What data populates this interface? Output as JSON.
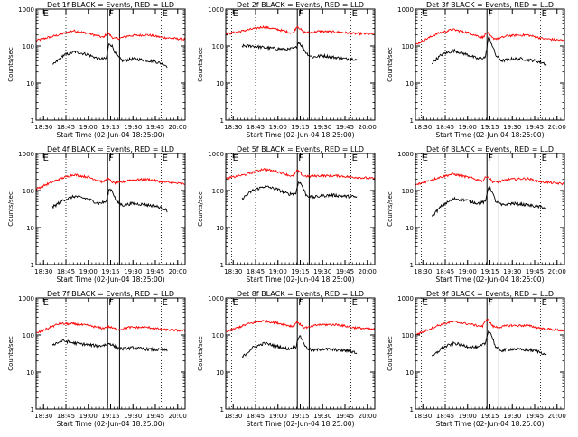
{
  "chart_data": {
    "type": "line",
    "y_scale": "log",
    "ylim": [
      1,
      1000
    ],
    "y_ticks": [
      1,
      10,
      100,
      1000
    ],
    "y_tick_labels": [
      "1",
      "10",
      "100",
      "1000"
    ],
    "ylabel": "Counts/sec",
    "xlabel": "Start Time (02-Jun-04 18:25:00)",
    "x_range_min": [
      0,
      100
    ],
    "x_ticks_min": [
      5,
      20,
      35,
      50,
      65,
      80,
      95
    ],
    "x_tick_labels": [
      "18:30",
      "18:45",
      "19:00",
      "19:15",
      "19:30",
      "19:45",
      "20:00"
    ],
    "marker_lines": [
      {
        "label": "E",
        "t_min": 4,
        "style": "dotted"
      },
      {
        "label": "",
        "t_min": 20,
        "style": "dotted"
      },
      {
        "label": "F",
        "t_min": 48,
        "style": "solid"
      },
      {
        "label": "",
        "t_min": 56,
        "style": "solid"
      },
      {
        "label": "E",
        "t_min": 84,
        "style": "dotted"
      }
    ],
    "series_colors": {
      "events": "#000000",
      "lld": "#ff0000"
    },
    "panels": [
      {
        "title": "Det 1f BLACK = Events, RED = LLD",
        "series": [
          {
            "name": "LLD",
            "color": "red",
            "x": [
              0,
              15,
              25,
              35,
              45,
              48,
              52,
              56,
              62,
              75,
              85,
              100
            ],
            "y": [
              140,
              200,
              260,
              220,
              170,
              230,
              160,
              160,
              190,
              200,
              170,
              150
            ]
          },
          {
            "name": "Events",
            "color": "black",
            "x": [
              11,
              18,
              26,
              34,
              42,
              47,
              49,
              51,
              54,
              58,
              65,
              72,
              80,
              86,
              88
            ],
            "y": [
              30,
              55,
              70,
              60,
              45,
              45,
              120,
              100,
              55,
              40,
              45,
              42,
              38,
              32,
              28
            ]
          }
        ]
      },
      {
        "title": "Det 2f BLACK = Events, RED = LLD",
        "series": [
          {
            "name": "LLD",
            "color": "red",
            "x": [
              0,
              10,
              25,
              35,
              45,
              48,
              52,
              56,
              62,
              75,
              85,
              100
            ],
            "y": [
              210,
              250,
              330,
              280,
              220,
              350,
              240,
              230,
              250,
              240,
              220,
              210
            ]
          },
          {
            "name": "Events",
            "color": "black",
            "x": [
              11,
              18,
              26,
              34,
              42,
              47,
              49,
              51,
              54,
              58,
              65,
              72,
              80,
              86,
              88
            ],
            "y": [
              100,
              100,
              90,
              85,
              80,
              90,
              130,
              100,
              65,
              50,
              55,
              50,
              45,
              45,
              42
            ]
          }
        ]
      },
      {
        "title": "Det 3f BLACK = Events, RED = LLD",
        "series": [
          {
            "name": "LLD",
            "color": "red",
            "x": [
              0,
              15,
              25,
              35,
              45,
              48,
              52,
              56,
              62,
              75,
              85,
              100
            ],
            "y": [
              110,
              220,
              280,
              230,
              170,
              230,
              160,
              160,
              190,
              200,
              160,
              140
            ]
          },
          {
            "name": "Events",
            "color": "black",
            "x": [
              11,
              18,
              26,
              34,
              42,
              47,
              49,
              51,
              54,
              58,
              65,
              72,
              80,
              86,
              88
            ],
            "y": [
              35,
              60,
              75,
              60,
              45,
              50,
              180,
              120,
              55,
              40,
              45,
              45,
              40,
              35,
              30
            ]
          }
        ]
      },
      {
        "title": "Det 4f BLACK = Events, RED = LLD",
        "series": [
          {
            "name": "LLD",
            "color": "red",
            "x": [
              0,
              15,
              25,
              35,
              45,
              48,
              52,
              56,
              62,
              75,
              85,
              100
            ],
            "y": [
              110,
              200,
              270,
              230,
              170,
              210,
              160,
              160,
              190,
              200,
              170,
              150
            ]
          },
          {
            "name": "Events",
            "color": "black",
            "x": [
              11,
              18,
              26,
              34,
              42,
              47,
              49,
              51,
              54,
              58,
              65,
              72,
              80,
              86,
              88
            ],
            "y": [
              35,
              55,
              70,
              60,
              45,
              50,
              110,
              100,
              50,
              40,
              45,
              42,
              38,
              32,
              28
            ]
          }
        ]
      },
      {
        "title": "Det 5f BLACK = Events, RED = LLD",
        "series": [
          {
            "name": "LLD",
            "color": "red",
            "x": [
              0,
              15,
              25,
              35,
              45,
              48,
              52,
              56,
              62,
              75,
              85,
              100
            ],
            "y": [
              210,
              280,
              380,
              320,
              240,
              350,
              250,
              240,
              250,
              250,
              230,
              210
            ]
          },
          {
            "name": "Events",
            "color": "black",
            "x": [
              11,
              18,
              26,
              34,
              42,
              47,
              49,
              51,
              54,
              58,
              65,
              72,
              80,
              86,
              88
            ],
            "y": [
              60,
              100,
              130,
              110,
              80,
              85,
              180,
              140,
              75,
              65,
              72,
              75,
              70,
              68,
              65
            ]
          }
        ]
      },
      {
        "title": "Det 6f BLACK = Events, RED = LLD",
        "series": [
          {
            "name": "LLD",
            "color": "red",
            "x": [
              0,
              15,
              25,
              35,
              45,
              48,
              52,
              56,
              62,
              75,
              85,
              100
            ],
            "y": [
              140,
              220,
              280,
              230,
              180,
              250,
              170,
              170,
              200,
              210,
              170,
              150
            ]
          },
          {
            "name": "Events",
            "color": "black",
            "x": [
              11,
              18,
              26,
              34,
              42,
              47,
              49,
              51,
              54,
              58,
              65,
              72,
              80,
              86,
              88
            ],
            "y": [
              20,
              40,
              60,
              55,
              45,
              50,
              130,
              100,
              50,
              40,
              45,
              42,
              38,
              35,
              30
            ]
          }
        ]
      },
      {
        "title": "Det 7f BLACK = Events, RED = LLD",
        "series": [
          {
            "name": "LLD",
            "color": "red",
            "x": [
              0,
              15,
              25,
              35,
              45,
              48,
              52,
              56,
              62,
              75,
              85,
              100
            ],
            "y": [
              110,
              200,
              200,
              180,
              150,
              170,
              150,
              140,
              160,
              160,
              140,
              130
            ]
          },
          {
            "name": "Events",
            "color": "black",
            "x": [
              11,
              18,
              26,
              34,
              42,
              47,
              49,
              51,
              54,
              58,
              65,
              72,
              80,
              86,
              88
            ],
            "y": [
              55,
              70,
              60,
              55,
              50,
              55,
              60,
              55,
              45,
              42,
              45,
              42,
              40,
              40,
              38
            ]
          }
        ]
      },
      {
        "title": "Det 8f BLACK = Events, RED = LLD",
        "series": [
          {
            "name": "LLD",
            "color": "red",
            "x": [
              0,
              15,
              25,
              35,
              45,
              48,
              52,
              56,
              62,
              75,
              85,
              100
            ],
            "y": [
              120,
              200,
              240,
              210,
              170,
              230,
              160,
              160,
              190,
              190,
              160,
              140
            ]
          },
          {
            "name": "Events",
            "color": "black",
            "x": [
              11,
              18,
              26,
              34,
              42,
              47,
              49,
              51,
              54,
              58,
              65,
              72,
              80,
              86,
              88
            ],
            "y": [
              25,
              45,
              60,
              50,
              42,
              48,
              95,
              80,
              45,
              38,
              42,
              40,
              38,
              35,
              32
            ]
          }
        ]
      },
      {
        "title": "Det 9f BLACK = Events, RED = LLD",
        "series": [
          {
            "name": "LLD",
            "color": "red",
            "x": [
              0,
              15,
              25,
              35,
              45,
              48,
              52,
              56,
              62,
              75,
              85,
              100
            ],
            "y": [
              100,
              180,
              230,
              200,
              170,
              280,
              170,
              160,
              180,
              180,
              150,
              130
            ]
          },
          {
            "name": "Events",
            "color": "black",
            "x": [
              11,
              18,
              26,
              34,
              42,
              47,
              49,
              51,
              54,
              58,
              65,
              72,
              80,
              86,
              88
            ],
            "y": [
              25,
              45,
              60,
              50,
              45,
              60,
              140,
              100,
              45,
              38,
              42,
              40,
              38,
              32,
              28
            ]
          }
        ]
      }
    ]
  }
}
